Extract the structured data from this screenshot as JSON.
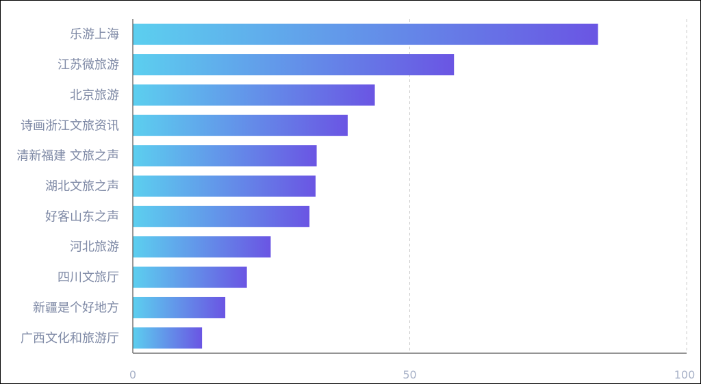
{
  "chart_data": {
    "type": "bar",
    "orientation": "horizontal",
    "categories": [
      "乐游上海",
      "江苏微旅游",
      "北京旅游",
      "诗画浙江文旅资讯",
      "清新福建 文旅之声",
      "湖北文旅之声",
      "好客山东之声",
      "河北旅游",
      "四川文旅厅",
      "新疆是个好地方",
      "广西文化和旅游厅"
    ],
    "values": [
      84,
      58,
      43.7,
      38.8,
      33.2,
      33,
      31.9,
      24.9,
      20.6,
      16.7,
      12.5
    ],
    "xlim": [
      0,
      100
    ],
    "x_ticks": [
      "0",
      "50",
      "100"
    ],
    "grid": "vertical-dashed",
    "colors": {
      "bar_start": "#5ccfef",
      "bar_end": "#6a55e3",
      "axis": "#555555",
      "grid": "#cccccc"
    }
  }
}
